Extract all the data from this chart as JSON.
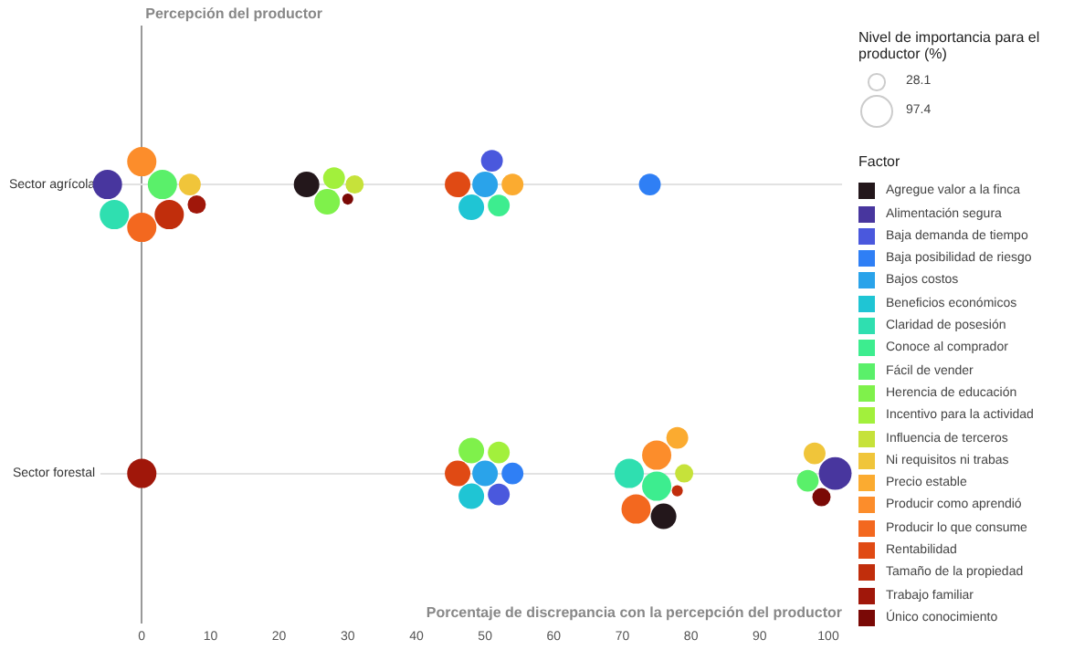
{
  "chart_data": {
    "type": "bubble",
    "orientation": "horizontal",
    "ylabel": "Percepción del productor",
    "xlabel": "Porcentaje de discrepancia con la percepción del productor",
    "legend_title": "Factor",
    "annotations": [
      "Nivel de importancia para el productor (%)"
    ],
    "categories": [
      "Sector agrícola",
      "Sector forestal"
    ],
    "size_legend": [
      28.1,
      97.4
    ],
    "xlim": [
      -6,
      102
    ],
    "xticks": [
      0,
      10,
      20,
      30,
      40,
      50,
      60,
      70,
      80,
      90,
      100
    ],
    "grid": "y",
    "legend": "right",
    "series": [
      {
        "name": "Agregue valor a la finca",
        "color": "#23171b",
        "values": [
          24,
          76
        ],
        "sizes": [
          59,
          59
        ]
      },
      {
        "name": "Alimentación segura",
        "color": "#48369e",
        "values": [
          -5,
          101
        ],
        "sizes": [
          77,
          97
        ]
      },
      {
        "name": "Baja demanda de tiempo",
        "color": "#4a58dd",
        "values": [
          51,
          52
        ],
        "sizes": [
          43,
          43
        ]
      },
      {
        "name": "Baja posibilidad de riesgo",
        "color": "#2f7ff5",
        "values": [
          74,
          54
        ],
        "sizes": [
          43,
          43
        ]
      },
      {
        "name": "Bajos costos",
        "color": "#2aa3ea",
        "values": [
          50,
          50
        ],
        "sizes": [
          59,
          59
        ]
      },
      {
        "name": "Beneficios económicos",
        "color": "#1fc5d4",
        "values": [
          48,
          48
        ],
        "sizes": [
          59,
          59
        ]
      },
      {
        "name": "Claridad de posesión",
        "color": "#2fdfb0",
        "values": [
          -4,
          71
        ],
        "sizes": [
          77,
          77
        ]
      },
      {
        "name": "Conoce al comprador",
        "color": "#3ded8f",
        "values": [
          52,
          75
        ],
        "sizes": [
          43,
          77
        ]
      },
      {
        "name": "Fácil de vender",
        "color": "#5af06a",
        "values": [
          3,
          97
        ],
        "sizes": [
          77,
          43
        ]
      },
      {
        "name": "Herencia de educación",
        "color": "#7ff14b",
        "values": [
          27,
          48
        ],
        "sizes": [
          59,
          59
        ]
      },
      {
        "name": "Incentivo para la actividad",
        "color": "#a2f03c",
        "values": [
          28,
          52
        ],
        "sizes": [
          43,
          43
        ]
      },
      {
        "name": "Influencia de terceros",
        "color": "#c6e23a",
        "values": [
          31,
          79
        ],
        "sizes": [
          30,
          30
        ]
      },
      {
        "name": "Ni requisitos ni trabas",
        "color": "#f0c53a",
        "values": [
          7,
          98
        ],
        "sizes": [
          43,
          43
        ]
      },
      {
        "name": "Precio estable",
        "color": "#fbab30",
        "values": [
          54,
          78
        ],
        "sizes": [
          43,
          43
        ]
      },
      {
        "name": "Producir como aprendió",
        "color": "#fc8d2b",
        "values": [
          0,
          75
        ],
        "sizes": [
          77,
          77
        ]
      },
      {
        "name": "Producir lo que consume",
        "color": "#f3681f",
        "values": [
          0,
          72
        ],
        "sizes": [
          77,
          77
        ]
      },
      {
        "name": "Rentabilidad",
        "color": "#e04a14",
        "values": [
          46,
          46
        ],
        "sizes": [
          59,
          59
        ]
      },
      {
        "name": "Tamaño de la propiedad",
        "color": "#c12e0c",
        "values": [
          4,
          78
        ],
        "sizes": [
          77,
          11
        ]
      },
      {
        "name": "Trabajo familiar",
        "color": "#a0170a",
        "values": [
          8,
          0
        ],
        "sizes": [
          30,
          77
        ]
      },
      {
        "name": "Único conocimiento",
        "color": "#7a0906",
        "values": [
          30,
          99
        ],
        "sizes": [
          11,
          30
        ]
      }
    ]
  }
}
